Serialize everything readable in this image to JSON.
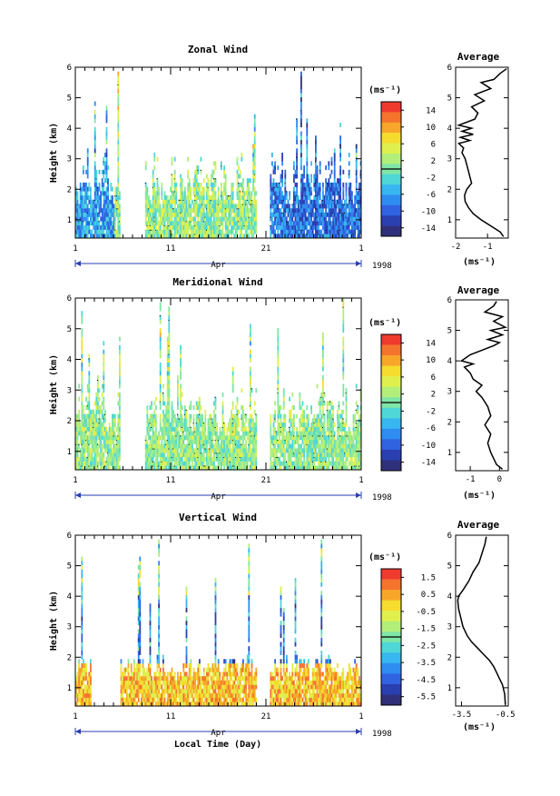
{
  "figure": {
    "xlabel": "Local Time (Day)",
    "month": "Apr",
    "year": "1998",
    "ylabel": "Height (km)",
    "unit": "(ms⁻¹)",
    "avg_title": "Average",
    "palette": [
      "#30307a",
      "#2a3fb0",
      "#2f63e0",
      "#2f8cf0",
      "#38b6f0",
      "#4fd6d6",
      "#7fe6a6",
      "#b2ef7a",
      "#dff04e",
      "#f5dc2e",
      "#f7a62a",
      "#f4742e",
      "#ef3a2e"
    ]
  },
  "chart_data": [
    {
      "type": "heatmap",
      "title": "Zonal Wind",
      "xlabel": "",
      "ylabel": "Height (km)",
      "x_ticks": [
        "1",
        "11",
        "21",
        "1"
      ],
      "xlim": [
        1,
        31
      ],
      "ylim": [
        0.4,
        6
      ],
      "y_ticks": [
        1,
        2,
        3,
        4,
        5,
        6
      ],
      "colorbar": {
        "label": "(ms⁻¹)",
        "ticks": [
          "14",
          "10",
          "6",
          "2",
          "-2",
          "-6",
          "-10",
          "-14"
        ],
        "range": [
          -16,
          16
        ]
      },
      "data_gaps": [
        [
          5.7,
          8.2
        ],
        [
          20.0,
          21.4
        ]
      ],
      "average_profile": {
        "title": "Average",
        "xlabel": "(ms⁻¹)",
        "x_ticks": [
          -2,
          -1
        ],
        "xlim": [
          -2.0,
          -0.35
        ],
        "ylim": [
          0.4,
          6
        ],
        "y_ticks": [
          1,
          2,
          3,
          4,
          5,
          6
        ],
        "x": [
          -0.5,
          -0.6,
          -0.9,
          -1.2,
          -1.45,
          -1.6,
          -1.7,
          -1.72,
          -1.65,
          -1.5,
          -1.55,
          -1.6,
          -1.65,
          -1.7,
          -1.8,
          -1.75,
          -1.9,
          -1.55,
          -1.85,
          -1.45,
          -1.8,
          -1.5,
          -1.9,
          -1.4,
          -1.3,
          -1.5,
          -1.1,
          -1.4,
          -0.9,
          -1.2,
          -0.8,
          -0.6,
          -0.4
        ],
        "y": [
          0.45,
          0.6,
          0.8,
          1.0,
          1.2,
          1.4,
          1.6,
          1.8,
          2.0,
          2.2,
          2.4,
          2.6,
          2.8,
          3.0,
          3.2,
          3.35,
          3.5,
          3.6,
          3.7,
          3.8,
          3.9,
          4.0,
          4.1,
          4.3,
          4.5,
          4.7,
          4.9,
          5.1,
          5.3,
          5.5,
          5.6,
          5.8,
          5.95
        ]
      }
    },
    {
      "type": "heatmap",
      "title": "Meridional Wind",
      "xlabel": "",
      "ylabel": "Height (km)",
      "x_ticks": [
        "1",
        "11",
        "21",
        "1"
      ],
      "xlim": [
        1,
        31
      ],
      "ylim": [
        0.4,
        6
      ],
      "y_ticks": [
        1,
        2,
        3,
        4,
        5,
        6
      ],
      "colorbar": {
        "label": "(ms⁻¹)",
        "ticks": [
          "14",
          "10",
          "6",
          "2",
          "-2",
          "-6",
          "-10",
          "-14"
        ],
        "range": [
          -16,
          16
        ]
      },
      "data_gaps": [
        [
          5.7,
          8.2
        ],
        [
          20.0,
          21.4
        ]
      ],
      "average_profile": {
        "title": "Average",
        "xlabel": "(ms⁻¹)",
        "x_ticks": [
          -1,
          0
        ],
        "xlim": [
          -1.5,
          0.3
        ],
        "ylim": [
          0.4,
          6
        ],
        "y_ticks": [
          1,
          2,
          3,
          4,
          5,
          6
        ],
        "x": [
          0.1,
          -0.1,
          -0.2,
          -0.3,
          -0.4,
          -0.3,
          -0.5,
          -0.3,
          -0.4,
          -0.6,
          -0.8,
          -0.6,
          -0.9,
          -1.0,
          -1.2,
          -0.9,
          -1.3,
          -1.0,
          -0.6,
          -0.2,
          0.0,
          -0.4,
          0.1,
          -0.3,
          0.2,
          -0.2,
          0.1,
          -0.5,
          -0.2,
          -0.1
        ],
        "y": [
          0.45,
          0.6,
          0.8,
          1.0,
          1.3,
          1.6,
          1.9,
          2.2,
          2.5,
          2.8,
          3.0,
          3.2,
          3.4,
          3.6,
          3.8,
          3.9,
          4.0,
          4.2,
          4.35,
          4.5,
          4.6,
          4.7,
          4.85,
          5.0,
          5.1,
          5.3,
          5.45,
          5.6,
          5.8,
          5.95
        ]
      }
    },
    {
      "type": "heatmap",
      "title": "Vertical Wind",
      "xlabel": "Local Time (Day)",
      "ylabel": "Height (km)",
      "x_ticks": [
        "1",
        "11",
        "21",
        "1"
      ],
      "xlim": [
        1,
        31
      ],
      "ylim": [
        0.4,
        6
      ],
      "y_ticks": [
        1,
        2,
        3,
        4,
        5,
        6
      ],
      "colorbar": {
        "label": "(ms⁻¹)",
        "ticks": [
          "1.5",
          "0.5",
          "-0.5",
          "-1.5",
          "-2.5",
          "-3.5",
          "-4.5",
          "-5.5"
        ],
        "range": [
          -6,
          2
        ]
      },
      "data_gaps": [
        [
          2.6,
          5.7
        ],
        [
          20.0,
          21.4
        ]
      ],
      "average_profile": {
        "title": "Average",
        "xlabel": "(ms⁻¹)",
        "x_ticks": [
          -3.5,
          -0.5
        ],
        "xlim": [
          -3.9,
          -0.3
        ],
        "ylim": [
          0.4,
          6
        ],
        "y_ticks": [
          1,
          2,
          3,
          4,
          5,
          6
        ],
        "x": [
          -0.5,
          -0.55,
          -0.7,
          -0.9,
          -1.1,
          -1.3,
          -1.6,
          -2.0,
          -2.4,
          -2.8,
          -3.1,
          -3.4,
          -3.55,
          -3.7,
          -3.75,
          -3.7,
          -3.4,
          -3.0,
          -2.7,
          -2.3,
          -2.1,
          -1.9,
          -1.8
        ],
        "y": [
          0.45,
          0.8,
          1.1,
          1.3,
          1.5,
          1.7,
          1.9,
          2.1,
          2.3,
          2.5,
          2.7,
          3.0,
          3.3,
          3.6,
          3.85,
          4.0,
          4.2,
          4.5,
          4.8,
          5.1,
          5.4,
          5.7,
          5.95
        ]
      }
    }
  ]
}
